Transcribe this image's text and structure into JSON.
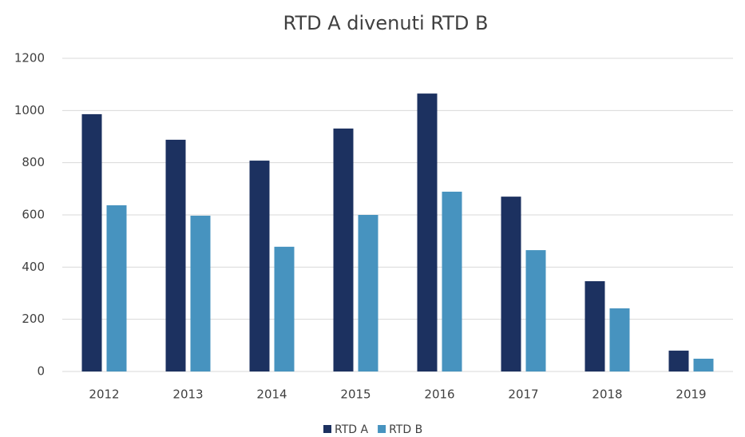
{
  "chart_data": {
    "type": "bar",
    "title": "RTD A divenuti RTD B",
    "categories": [
      "2012",
      "2013",
      "2014",
      "2015",
      "2016",
      "2017",
      "2018",
      "2019"
    ],
    "series": [
      {
        "name": "RTD A",
        "color": "#1c3160",
        "values": [
          986,
          888,
          808,
          931,
          1065,
          670,
          346,
          80
        ]
      },
      {
        "name": "RTD B",
        "color": "#4793bf",
        "values": [
          637,
          597,
          478,
          600,
          689,
          465,
          242,
          49
        ]
      }
    ],
    "ylim": [
      0,
      1200
    ],
    "yticks": [
      0,
      200,
      400,
      600,
      800,
      1000,
      1200
    ],
    "grid": true,
    "legend": "bottom"
  }
}
